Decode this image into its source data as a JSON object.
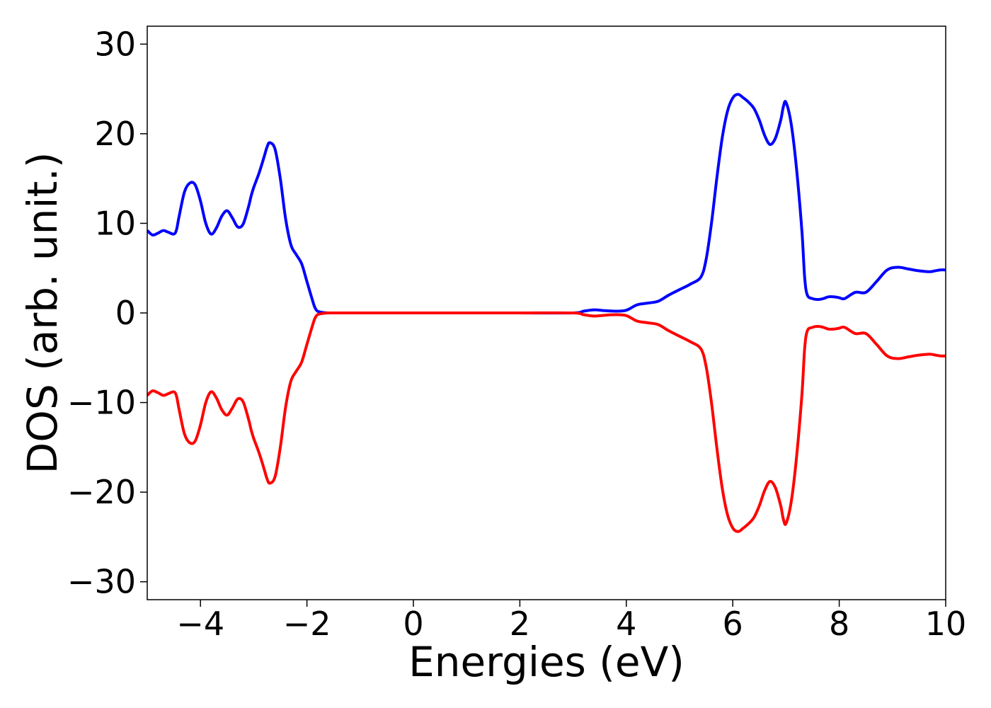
{
  "chart_data": {
    "type": "line",
    "title": "",
    "xlabel": "Energies (eV)",
    "ylabel": "DOS (arb. unit.)",
    "xlim": [
      -5,
      10
    ],
    "ylim": [
      -32,
      32
    ],
    "xticks": [
      -4,
      -2,
      0,
      2,
      4,
      6,
      8,
      10
    ],
    "xtick_labels": [
      "−4",
      "−2",
      "0",
      "2",
      "4",
      "6",
      "8",
      "10"
    ],
    "yticks": [
      -30,
      -20,
      -10,
      0,
      10,
      20,
      30
    ],
    "ytick_labels": [
      "−30",
      "−20",
      "−10",
      "0",
      "10",
      "20",
      "30"
    ],
    "grid": false,
    "legend": "none",
    "series": [
      {
        "color": "#0000ff",
        "x": [
          -5.0,
          -4.9,
          -4.8,
          -4.7,
          -4.6,
          -4.5,
          -4.45,
          -4.4,
          -4.3,
          -4.2,
          -4.1,
          -4.0,
          -3.9,
          -3.8,
          -3.7,
          -3.6,
          -3.5,
          -3.4,
          -3.3,
          -3.2,
          -3.1,
          -3.05,
          -3.0,
          -2.9,
          -2.8,
          -2.75,
          -2.7,
          -2.6,
          -2.5,
          -2.4,
          -2.3,
          -2.2,
          -2.1,
          -2.0,
          -1.9,
          -1.85,
          -1.8,
          -1.7,
          -1.6,
          -1.5,
          -1.4,
          -1.3,
          -1.2,
          -1.1,
          -1.0,
          -0.9,
          -0.8,
          -0.7,
          -0.6,
          -0.5,
          0.0,
          1.0,
          2.0,
          3.0,
          3.2,
          3.4,
          3.6,
          3.8,
          4.0,
          4.2,
          4.4,
          4.6,
          4.8,
          5.0,
          5.2,
          5.4,
          5.5,
          5.6,
          5.7,
          5.8,
          5.9,
          6.0,
          6.1,
          6.2,
          6.3,
          6.4,
          6.5,
          6.6,
          6.7,
          6.8,
          6.9,
          6.95,
          7.0,
          7.1,
          7.2,
          7.3,
          7.35,
          7.4,
          7.5,
          7.6,
          7.7,
          7.8,
          7.9,
          8.0,
          8.1,
          8.3,
          8.5,
          8.7,
          8.9,
          9.1,
          9.3,
          9.5,
          9.7,
          9.8,
          9.9,
          10.0
        ],
        "y": [
          9.2,
          8.7,
          8.9,
          9.2,
          9.0,
          8.8,
          9.3,
          10.8,
          13.5,
          14.5,
          14.3,
          12.5,
          10.0,
          8.8,
          9.5,
          10.8,
          11.4,
          10.6,
          9.6,
          9.9,
          11.8,
          13.0,
          14.0,
          15.6,
          17.5,
          18.5,
          19.0,
          18.3,
          15.0,
          10.5,
          7.6,
          6.5,
          5.5,
          3.5,
          1.5,
          0.6,
          0.2,
          0.05,
          0.0,
          0.0,
          0.0,
          0.0,
          0.0,
          0.0,
          0.0,
          0.0,
          0.0,
          0.0,
          0.0,
          0.0,
          0.0,
          0.0,
          0.0,
          0.0,
          0.2,
          0.35,
          0.25,
          0.2,
          0.3,
          0.9,
          1.1,
          1.3,
          2.0,
          2.6,
          3.2,
          4.0,
          6.0,
          10.0,
          15.0,
          19.5,
          22.5,
          24.0,
          24.4,
          24.0,
          23.5,
          22.8,
          21.5,
          19.8,
          18.8,
          19.5,
          21.5,
          23.0,
          23.5,
          21.0,
          16.0,
          9.0,
          4.0,
          2.0,
          1.6,
          1.5,
          1.6,
          1.8,
          1.8,
          1.7,
          1.6,
          2.3,
          2.3,
          3.5,
          4.8,
          5.1,
          4.9,
          4.7,
          4.6,
          4.7,
          4.8,
          4.8
        ]
      },
      {
        "color": "#ff0000",
        "x": [
          -5.0,
          -4.9,
          -4.8,
          -4.7,
          -4.6,
          -4.5,
          -4.45,
          -4.4,
          -4.3,
          -4.2,
          -4.1,
          -4.0,
          -3.9,
          -3.8,
          -3.7,
          -3.6,
          -3.5,
          -3.4,
          -3.3,
          -3.2,
          -3.1,
          -3.05,
          -3.0,
          -2.9,
          -2.8,
          -2.75,
          -2.7,
          -2.6,
          -2.5,
          -2.4,
          -2.3,
          -2.2,
          -2.1,
          -2.0,
          -1.9,
          -1.85,
          -1.8,
          -1.7,
          -1.6,
          -1.5,
          -1.4,
          -1.3,
          -1.2,
          -1.1,
          -1.0,
          -0.9,
          -0.8,
          -0.7,
          -0.6,
          -0.5,
          0.0,
          1.0,
          2.0,
          3.0,
          3.2,
          3.4,
          3.6,
          3.8,
          4.0,
          4.2,
          4.4,
          4.6,
          4.8,
          5.0,
          5.2,
          5.4,
          5.5,
          5.6,
          5.7,
          5.8,
          5.9,
          6.0,
          6.1,
          6.2,
          6.3,
          6.4,
          6.5,
          6.6,
          6.7,
          6.8,
          6.9,
          6.95,
          7.0,
          7.1,
          7.2,
          7.3,
          7.35,
          7.4,
          7.5,
          7.6,
          7.7,
          7.8,
          7.9,
          8.0,
          8.1,
          8.3,
          8.5,
          8.7,
          8.9,
          9.1,
          9.3,
          9.5,
          9.7,
          9.8,
          9.9,
          10.0
        ],
        "y": [
          -9.2,
          -8.7,
          -8.9,
          -9.2,
          -9.0,
          -8.8,
          -9.3,
          -10.8,
          -13.5,
          -14.5,
          -14.3,
          -12.5,
          -10.0,
          -8.8,
          -9.5,
          -10.8,
          -11.4,
          -10.6,
          -9.6,
          -9.9,
          -11.8,
          -13.0,
          -14.0,
          -15.6,
          -17.5,
          -18.5,
          -19.0,
          -18.3,
          -15.0,
          -10.5,
          -7.6,
          -6.5,
          -5.5,
          -3.5,
          -1.5,
          -0.6,
          -0.2,
          -0.05,
          0.0,
          0.0,
          0.0,
          0.0,
          0.0,
          0.0,
          0.0,
          0.0,
          0.0,
          0.0,
          0.0,
          0.0,
          0.0,
          0.0,
          0.0,
          0.0,
          -0.2,
          -0.35,
          -0.25,
          -0.2,
          -0.3,
          -0.9,
          -1.1,
          -1.3,
          -2.0,
          -2.6,
          -3.2,
          -4.0,
          -6.0,
          -10.0,
          -15.0,
          -19.5,
          -22.5,
          -24.0,
          -24.4,
          -24.0,
          -23.5,
          -22.8,
          -21.5,
          -19.8,
          -18.8,
          -19.5,
          -21.5,
          -23.0,
          -23.5,
          -21.0,
          -16.0,
          -9.0,
          -4.0,
          -2.0,
          -1.6,
          -1.5,
          -1.6,
          -1.8,
          -1.8,
          -1.7,
          -1.6,
          -2.3,
          -2.3,
          -3.5,
          -4.8,
          -5.1,
          -4.9,
          -4.7,
          -4.6,
          -4.7,
          -4.8,
          -4.8
        ]
      }
    ]
  }
}
